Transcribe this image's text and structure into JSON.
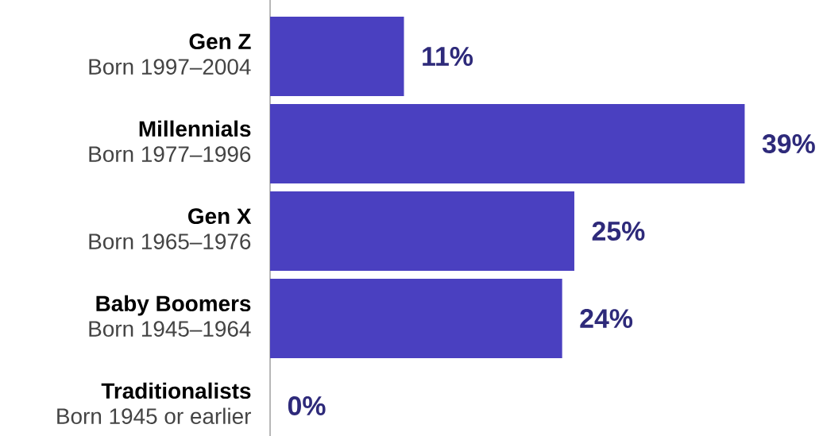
{
  "chart_data": {
    "type": "bar",
    "orientation": "horizontal",
    "categories": [
      "Gen Z",
      "Millennials",
      "Gen X",
      "Baby Boomers",
      "Traditionalists"
    ],
    "annotations": [
      "Born 1997–2004",
      "Born 1977–1996",
      "Born 1965–1976",
      "Born 1945–1964",
      "Born 1945 or earlier"
    ],
    "values": [
      11,
      39,
      25,
      24,
      0
    ],
    "value_labels": [
      "11%",
      "39%",
      "25%",
      "24%",
      "0%"
    ],
    "color": "#4a40c0"
  }
}
